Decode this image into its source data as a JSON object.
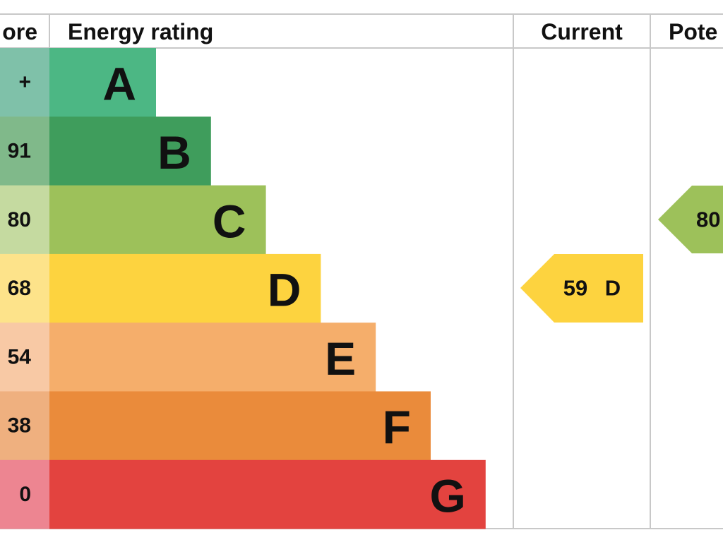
{
  "header": {
    "score": "ore",
    "rating": "Energy rating",
    "current": "Current",
    "potential": "Pote"
  },
  "rows": [
    {
      "range": "+",
      "letter": "A"
    },
    {
      "range": "91",
      "letter": "B"
    },
    {
      "range": "80",
      "letter": "C"
    },
    {
      "range": "68",
      "letter": "D"
    },
    {
      "range": "54",
      "letter": "E"
    },
    {
      "range": "38",
      "letter": "F"
    },
    {
      "range": "0",
      "letter": "G"
    }
  ],
  "current": {
    "score": "59",
    "letter": "D"
  },
  "potential": {
    "score": "80"
  }
}
